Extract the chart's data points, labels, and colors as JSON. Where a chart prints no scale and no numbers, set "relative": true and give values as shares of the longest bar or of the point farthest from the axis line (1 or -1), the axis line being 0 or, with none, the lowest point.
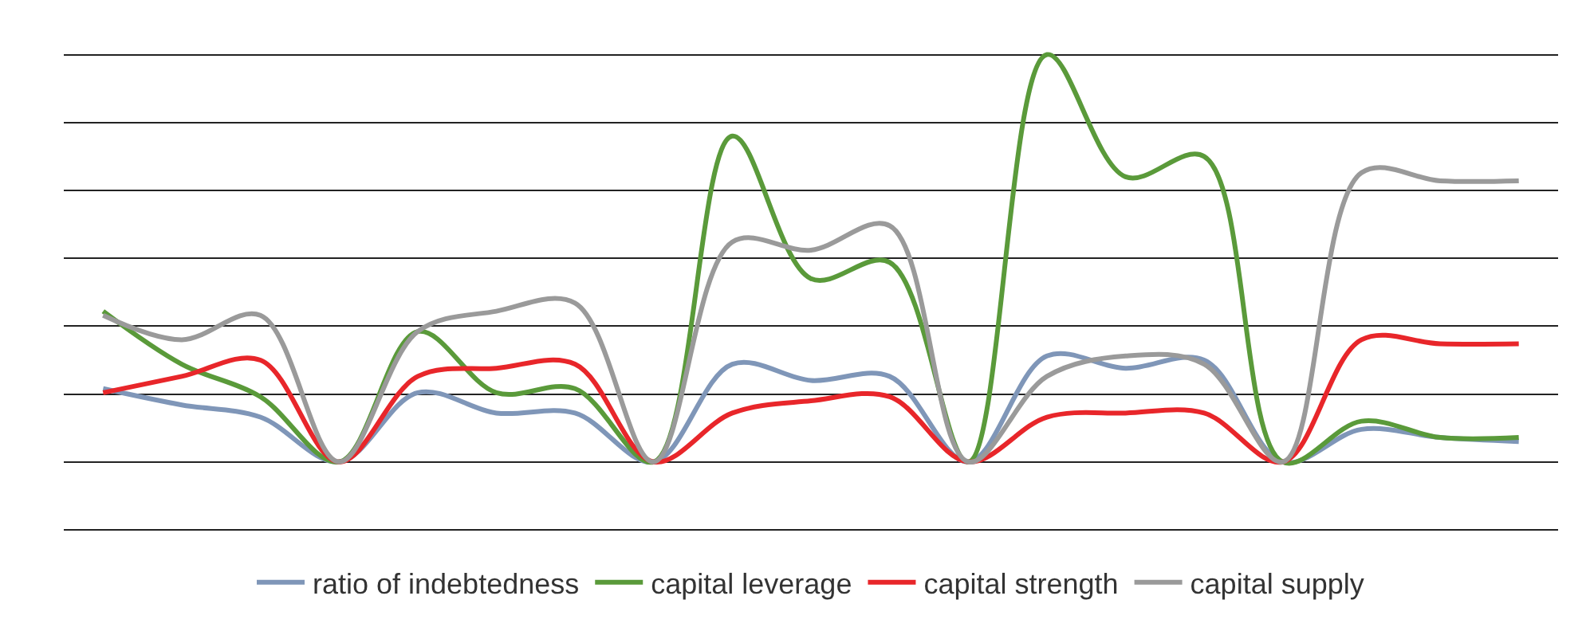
{
  "chart_data": {
    "type": "line",
    "relative": true,
    "grid": "y",
    "legend": "bottom",
    "marker": "none",
    "line_style": "solid",
    "categories": [
      null,
      null,
      null,
      null,
      null,
      null,
      null,
      null,
      null,
      null,
      null,
      null,
      null,
      null,
      null,
      null,
      null,
      null,
      null
    ],
    "series": [
      {
        "name": "ratio of indebtedness",
        "color": "#7f96b8",
        "values": [
          0.18,
          0.14,
          0.11,
          0,
          0.17,
          0.12,
          0.12,
          0,
          0.24,
          0.2,
          0.21,
          0,
          0.26,
          0.23,
          0.25,
          0,
          0.08,
          0.06,
          0.05
        ]
      },
      {
        "name": "capital leverage",
        "color": "#5a9a3a",
        "values": [
          0.37,
          0.24,
          0.16,
          0,
          0.32,
          0.17,
          0.18,
          0,
          0.8,
          0.45,
          0.49,
          0,
          1,
          0.7,
          0.75,
          0,
          0.1,
          0.06,
          0.06
        ]
      },
      {
        "name": "capital strength",
        "color": "#e8262a",
        "values": [
          0.17,
          0.21,
          0.25,
          0,
          0.21,
          0.23,
          0.24,
          0,
          0.12,
          0.15,
          0.16,
          0,
          0.11,
          0.12,
          0.12,
          0,
          0.3,
          0.29,
          0.29
        ]
      },
      {
        "name": "capital supply",
        "color": "#9a9a9a",
        "values": [
          0.36,
          0.3,
          0.36,
          0,
          0.32,
          0.37,
          0.39,
          0,
          0.54,
          0.52,
          0.58,
          0,
          0.21,
          0.26,
          0.24,
          0,
          0.71,
          0.69,
          0.69
        ]
      }
    ]
  }
}
